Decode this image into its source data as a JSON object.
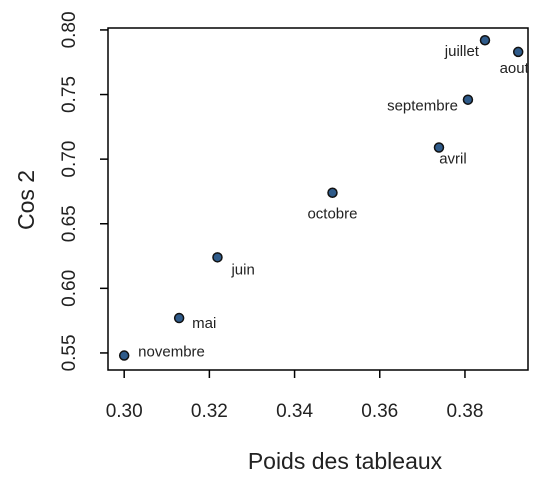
{
  "chart_data": {
    "type": "scatter",
    "x_label": "Poids des tableaux",
    "y_label": "Cos 2",
    "x": [
      0.3,
      0.3129,
      0.3219,
      0.3489,
      0.3739,
      0.3807,
      0.3847,
      0.3925
    ],
    "series": [
      {
        "color": "#2f5b8a",
        "values": [
          0.548,
          0.577,
          0.624,
          0.674,
          0.709,
          0.746,
          0.792,
          0.783
        ],
        "point_labels": [
          "novembre",
          "mai",
          "juin",
          "octobre",
          "avril",
          "septembre",
          "juillet",
          "aout"
        ]
      }
    ],
    "xlim": [
      0.2962,
      0.3948
    ],
    "ylim": [
      0.5368,
      0.8015
    ],
    "xticks": [
      {
        "value": 0.3,
        "label": "0.30"
      },
      0.32,
      0.34,
      0.36,
      0.38
    ],
    "yticks": [
      0.55,
      {
        "value": 0.6,
        "label": "0.60"
      },
      0.65,
      {
        "value": 0.7,
        "label": "0.70"
      },
      0.75,
      {
        "value": 0.8,
        "label": "0.80"
      }
    ]
  }
}
